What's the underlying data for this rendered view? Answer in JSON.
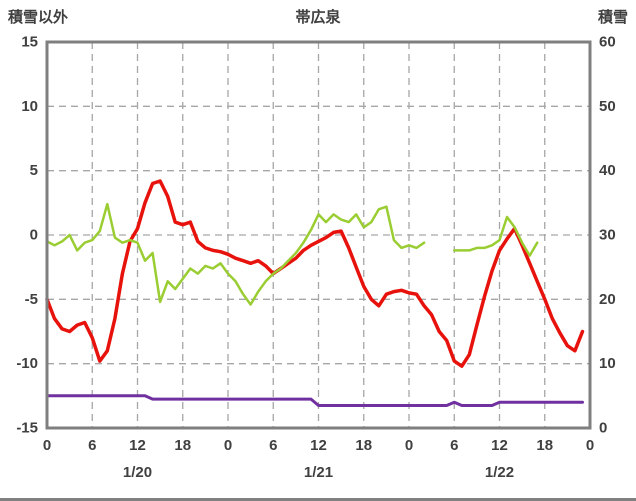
{
  "header": {
    "left_axis_title": "積雪以外",
    "station_title": "帯広泉",
    "right_axis_title": "積雪"
  },
  "colors": {
    "grid": "#a6a6a6",
    "border": "#7f7f7f",
    "text": "#404040",
    "background": "#ffffff",
    "divider": "#808080",
    "red_series": "#e8120c",
    "green_series": "#9acd32",
    "purple_series": "#7030a0"
  },
  "chart_data": {
    "type": "line",
    "title": "帯広泉",
    "legend": "none",
    "grid": true,
    "left_axis": {
      "label": "積雪以外",
      "min": -15,
      "max": 15,
      "ticks": [
        15,
        10,
        5,
        0,
        -5,
        -10,
        -15
      ]
    },
    "right_axis": {
      "label": "積雪",
      "min": 0,
      "max": 60,
      "ticks": [
        60,
        50,
        40,
        30,
        20,
        10,
        0
      ]
    },
    "x_axis": {
      "hours_span": 72,
      "tick_interval": 6,
      "tick_labels": [
        "0",
        "6",
        "12",
        "18",
        "0",
        "6",
        "12",
        "18",
        "0",
        "6",
        "12",
        "18",
        "0"
      ],
      "date_labels": [
        "1/20",
        "1/21",
        "1/22"
      ]
    },
    "series": [
      {
        "name": "red",
        "color": "#e8120c",
        "axis": "left",
        "width": 3.5,
        "values": [
          -5.0,
          -6.5,
          -7.3,
          -7.5,
          -7.0,
          -6.8,
          -8.0,
          -9.8,
          -9.0,
          -6.5,
          -3.0,
          -0.5,
          0.5,
          2.5,
          4.0,
          4.2,
          3.0,
          1.0,
          0.8,
          1.0,
          -0.5,
          -1.0,
          -1.2,
          -1.3,
          -1.5,
          -1.8,
          -2.0,
          -2.2,
          -2.0,
          -2.4,
          -3.0,
          -2.6,
          -2.2,
          -1.8,
          -1.2,
          -0.8,
          -0.5,
          -0.2,
          0.2,
          0.3,
          -1.0,
          -2.5,
          -4.0,
          -5.0,
          -5.5,
          -4.6,
          -4.4,
          -4.3,
          -4.5,
          -4.6,
          -5.5,
          -6.2,
          -7.5,
          -8.2,
          -9.8,
          -10.2,
          -9.3,
          -7.0,
          -4.8,
          -2.8,
          -1.2,
          -0.3,
          0.5,
          -0.8,
          -2.2,
          -3.6,
          -5.0,
          -6.5,
          -7.6,
          -8.6,
          -9.0,
          -7.5
        ]
      },
      {
        "name": "green",
        "color": "#9acd32",
        "axis": "left",
        "width": 2.5,
        "values": [
          -0.5,
          -0.8,
          -0.5,
          0.0,
          -1.2,
          -0.6,
          -0.4,
          0.3,
          2.4,
          -0.2,
          -0.6,
          -0.4,
          -0.6,
          -2.0,
          -1.4,
          -5.2,
          -3.6,
          -4.2,
          -3.4,
          -2.6,
          -3.0,
          -2.4,
          -2.6,
          -2.2,
          -3.0,
          -3.6,
          -4.6,
          -5.4,
          -4.4,
          -3.6,
          -3.0,
          -2.6,
          -2.0,
          -1.4,
          -0.6,
          0.4,
          1.6,
          1.0,
          1.6,
          1.2,
          1.0,
          1.6,
          0.6,
          1.0,
          2.0,
          2.2,
          -0.4,
          -1.0,
          -0.8,
          -1.0,
          -0.6,
          null,
          null,
          null,
          -1.2,
          -1.2,
          -1.2,
          -1.0,
          -1.0,
          -0.8,
          -0.4,
          1.4,
          0.6,
          -0.6,
          -1.6,
          -0.6,
          null,
          null,
          null,
          null,
          null,
          null
        ]
      },
      {
        "name": "purple",
        "color": "#7030a0",
        "axis": "right",
        "width": 3,
        "values": [
          5,
          5,
          5,
          5,
          5,
          5,
          5,
          5,
          5,
          5,
          5,
          5,
          5,
          5,
          4.5,
          4.5,
          4.5,
          4.5,
          4.5,
          4.5,
          4.5,
          4.5,
          4.5,
          4.5,
          4.5,
          4.5,
          4.5,
          4.5,
          4.5,
          4.5,
          4.5,
          4.5,
          4.5,
          4.5,
          4.5,
          4.5,
          3.5,
          3.5,
          3.5,
          3.5,
          3.5,
          3.5,
          3.5,
          3.5,
          3.5,
          3.5,
          3.5,
          3.5,
          3.5,
          3.5,
          3.5,
          3.5,
          3.5,
          3.5,
          4,
          3.5,
          3.5,
          3.5,
          3.5,
          3.5,
          4,
          4,
          4,
          4,
          4,
          4,
          4,
          4,
          4,
          4,
          4,
          4
        ]
      }
    ]
  }
}
